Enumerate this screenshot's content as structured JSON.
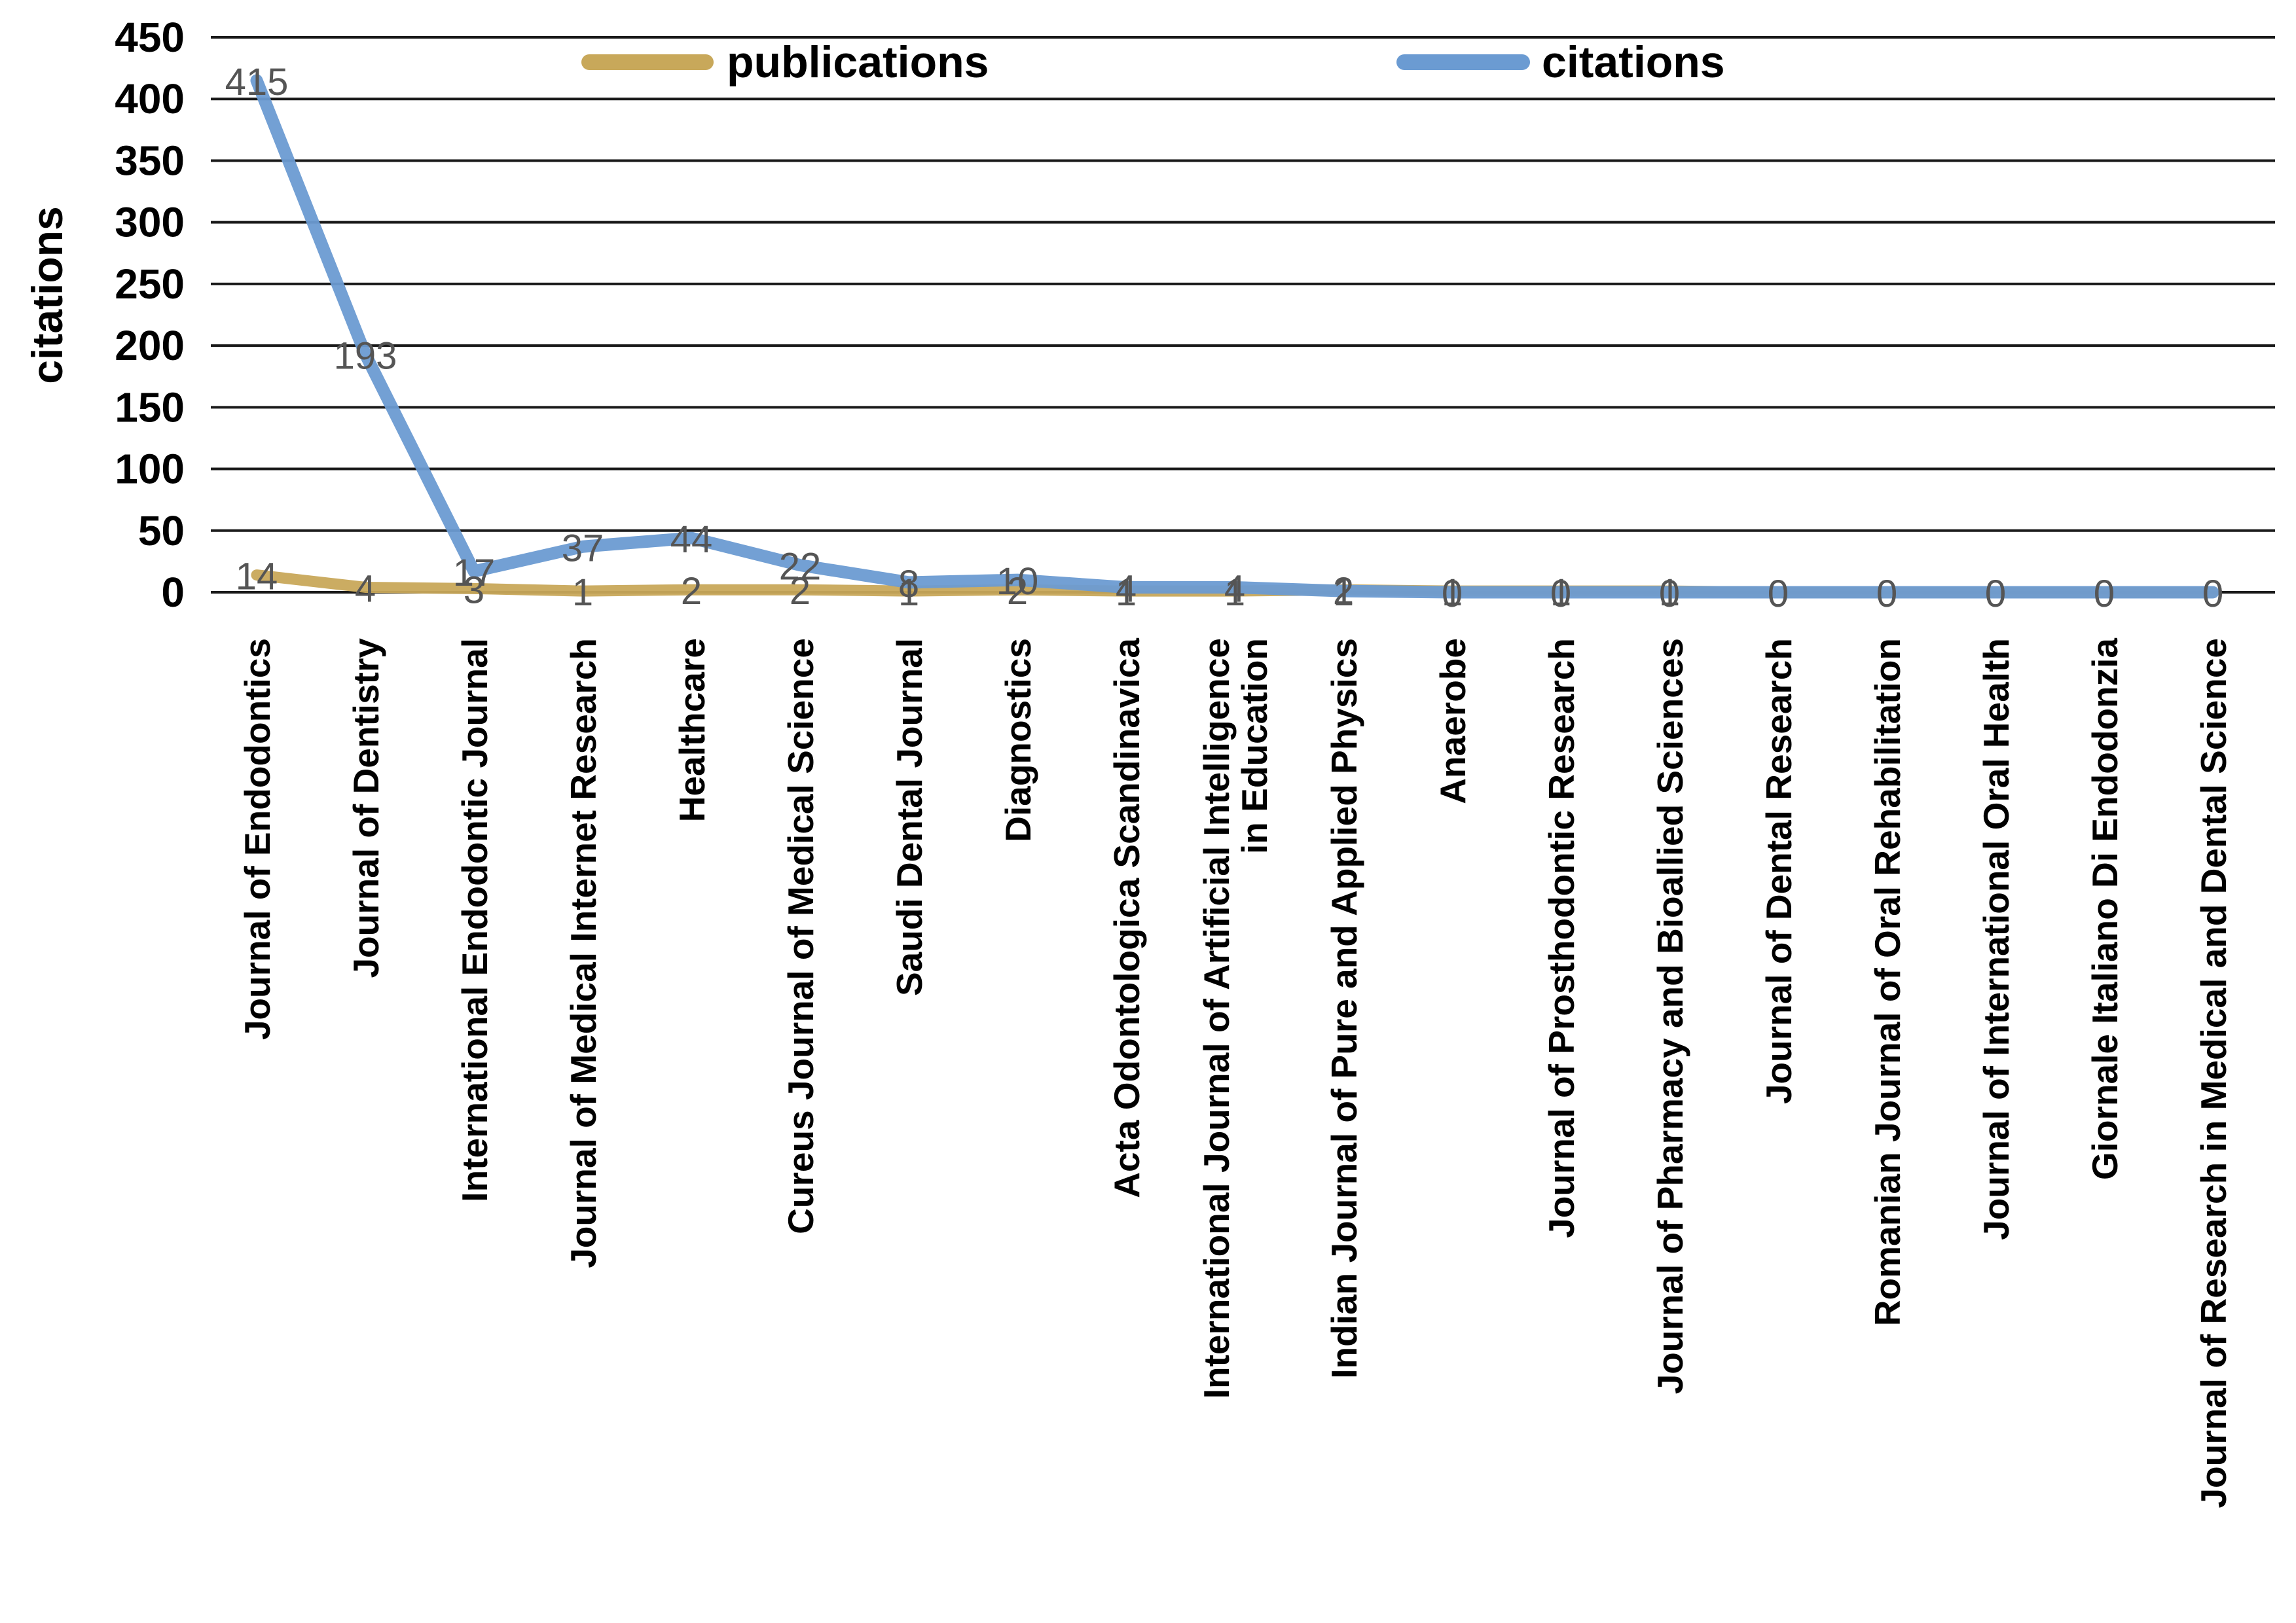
{
  "chart_data": {
    "type": "line",
    "ylabel": "citations",
    "ylim": [
      0,
      450
    ],
    "yticks": [
      0,
      50,
      100,
      150,
      200,
      250,
      300,
      350,
      400,
      450
    ],
    "grid": true,
    "legend_position": "top",
    "categories": [
      [
        "Journal of Endodontics"
      ],
      [
        "Journal of Dentistry"
      ],
      [
        "International Endodontic Journal"
      ],
      [
        "Journal of Medical Internet Research"
      ],
      [
        "Healthcare"
      ],
      [
        "Cureus Journal of Medical Science"
      ],
      [
        "Saudi Dental Journal"
      ],
      [
        "Diagnostics"
      ],
      [
        "Acta Odontologica Scandinavica"
      ],
      [
        "International Journal of Artificial Intelligence",
        "in Education"
      ],
      [
        "Indian Journal of Pure and Applied Physics"
      ],
      [
        "Anaerobe"
      ],
      [
        "Journal of Prosthodontic Research"
      ],
      [
        "Journal of Pharmacy and Bioallied Sciences"
      ],
      [
        "Journal of Dental Research"
      ],
      [
        "Romanian Journal of Oral Rehabilitation"
      ],
      [
        "Journal of International Oral Health"
      ],
      [
        "Giornale Italiano Di Endodonzia"
      ],
      [
        "Journal of Research in Medical and Dental Science"
      ]
    ],
    "series": [
      {
        "name": "publications",
        "color": "#c8a85a",
        "values": [
          14,
          4,
          3,
          1,
          2,
          2,
          1,
          2,
          1,
          1,
          2,
          1,
          1,
          1,
          0,
          0,
          0,
          0,
          0
        ]
      },
      {
        "name": "citations",
        "color": "#6b9bd2",
        "values": [
          415,
          193,
          17,
          37,
          44,
          22,
          8,
          10,
          4,
          4,
          1,
          0,
          0,
          0,
          0,
          0,
          0,
          0,
          0
        ]
      }
    ]
  }
}
